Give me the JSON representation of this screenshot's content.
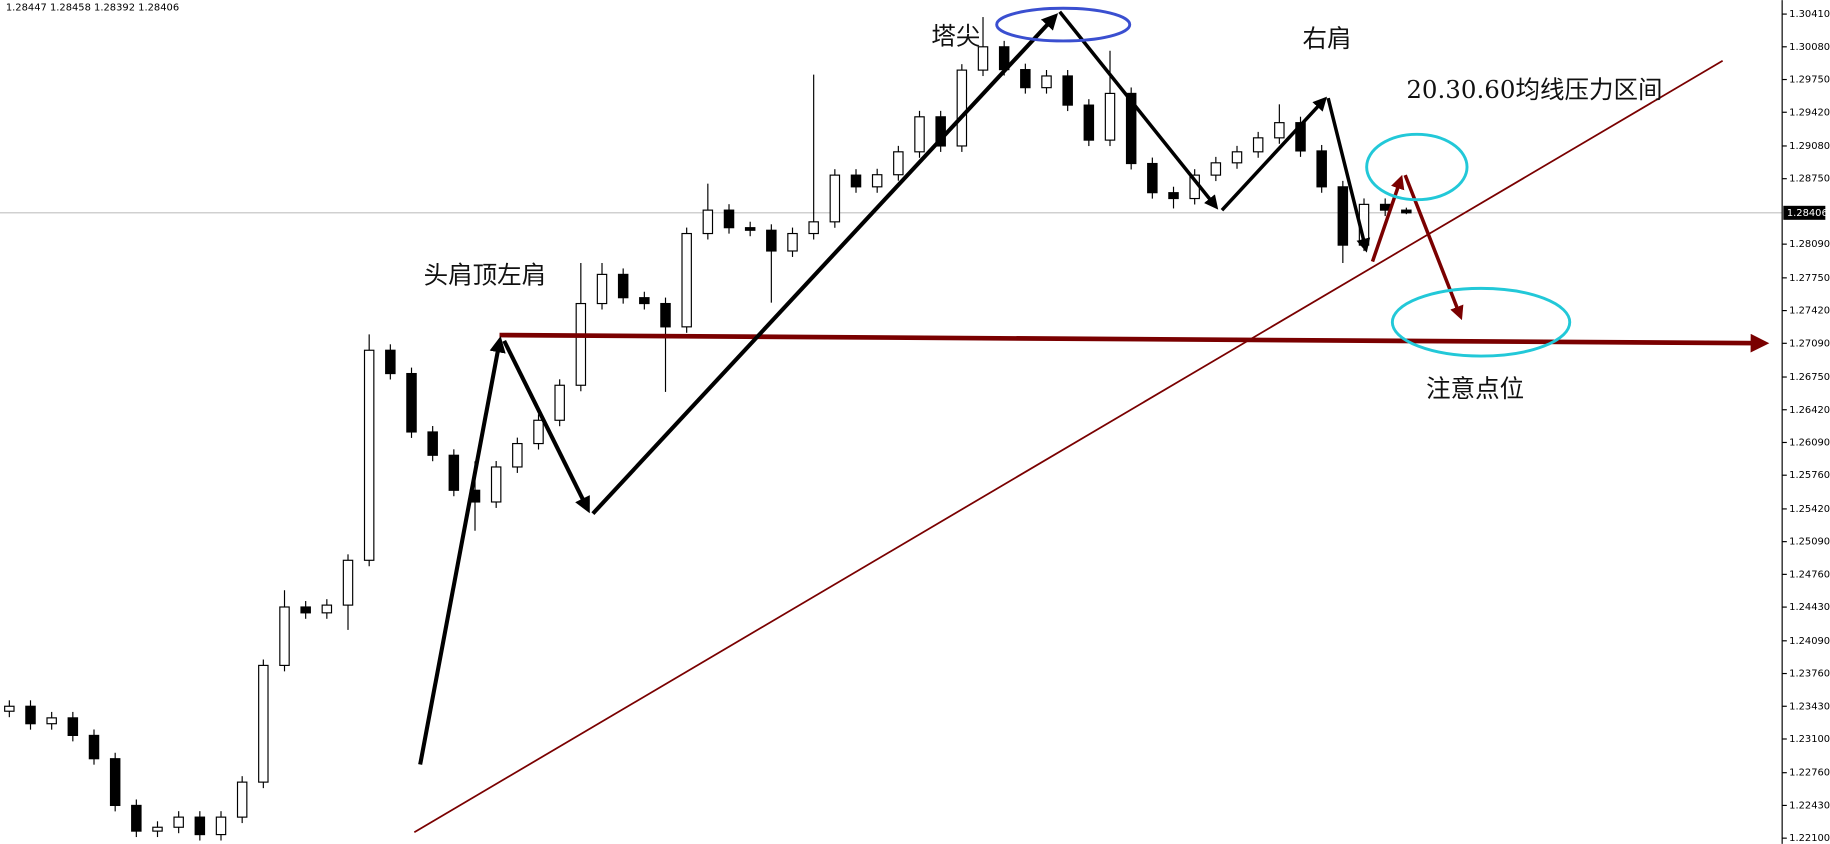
{
  "chart_data": {
    "type": "candlestick",
    "header": "1.28447 1.28458 1.28392 1.28406",
    "open": [
      1.2338,
      1.2343,
      1.23254,
      1.23313,
      1.23136,
      1.22901,
      1.2243,
      1.22171,
      1.2221,
      1.22312,
      1.22136,
      1.22312,
      1.22665,
      1.23842,
      1.24431,
      1.24372,
      1.2445,
      1.24902,
      1.2702,
      1.26785,
      1.26196,
      1.25961,
      1.25608,
      1.2549,
      1.25843,
      1.26079,
      1.26314,
      1.26667,
      1.27491,
      1.27785,
      1.2755,
      1.27491,
      1.27256,
      1.28197,
      1.28433,
      1.28256,
      1.2823,
      1.28021,
      1.28197,
      1.28315,
      1.28786,
      1.28668,
      1.2879,
      1.29021,
      1.29374,
      1.2908,
      1.29845,
      1.3008,
      1.2985,
      1.29668,
      1.29786,
      1.29492,
      1.29139,
      1.2961,
      1.28903,
      1.28609,
      1.2855,
      1.28786,
      1.2891,
      1.29021,
      1.29162,
      1.29315,
      1.2903,
      1.28668,
      1.2808,
      1.28491,
      1.28433
    ],
    "high": [
      1.2349,
      1.2349,
      1.23373,
      1.23373,
      1.23196,
      1.22961,
      1.2249,
      1.2227,
      1.22372,
      1.22372,
      1.22372,
      1.22725,
      1.23902,
      1.246,
      1.24491,
      1.2451,
      1.24962,
      1.2718,
      1.2708,
      1.26845,
      1.26256,
      1.26021,
      1.259,
      1.25903,
      1.26139,
      1.26374,
      1.26727,
      1.279,
      1.279,
      1.27845,
      1.2761,
      1.27551,
      1.28257,
      1.287,
      1.28493,
      1.28316,
      1.2829,
      1.28257,
      1.298,
      1.28846,
      1.28846,
      1.2885,
      1.29081,
      1.29434,
      1.29434,
      1.29905,
      1.3038,
      1.3014,
      1.2991,
      1.29846,
      1.29846,
      1.29552,
      1.3004,
      1.2967,
      1.28963,
      1.28669,
      1.28846,
      1.2897,
      1.29081,
      1.29222,
      1.295,
      1.29375,
      1.2909,
      1.28728,
      1.28551,
      1.28551,
      1.28458
    ],
    "low": [
      1.2332,
      1.23194,
      1.23194,
      1.23076,
      1.22841,
      1.2237,
      1.22111,
      1.22111,
      1.2215,
      1.22076,
      1.22076,
      1.22252,
      1.22605,
      1.23782,
      1.24312,
      1.24312,
      1.242,
      1.24842,
      1.26725,
      1.26136,
      1.25901,
      1.25548,
      1.252,
      1.2543,
      1.25783,
      1.26019,
      1.26254,
      1.26607,
      1.27431,
      1.2749,
      1.27431,
      1.266,
      1.27196,
      1.28137,
      1.28196,
      1.2817,
      1.275,
      1.27961,
      1.28137,
      1.28255,
      1.28608,
      1.28608,
      1.2873,
      1.28961,
      1.2902,
      1.2902,
      1.29785,
      1.2979,
      1.29608,
      1.29608,
      1.29432,
      1.29079,
      1.29079,
      1.28843,
      1.28549,
      1.2845,
      1.2849,
      1.28726,
      1.2885,
      1.28961,
      1.29102,
      1.2897,
      1.28608,
      1.279,
      1.2802,
      1.28373,
      1.28392
    ],
    "close": [
      1.2343,
      1.23254,
      1.23313,
      1.23136,
      1.22901,
      1.2243,
      1.22171,
      1.2221,
      1.22312,
      1.22136,
      1.22312,
      1.22665,
      1.23842,
      1.24431,
      1.24372,
      1.2445,
      1.24902,
      1.2702,
      1.26785,
      1.26196,
      1.25961,
      1.25608,
      1.2549,
      1.25843,
      1.26079,
      1.26314,
      1.26667,
      1.27491,
      1.27785,
      1.2755,
      1.27491,
      1.27256,
      1.28197,
      1.28433,
      1.28256,
      1.2823,
      1.28021,
      1.28197,
      1.28315,
      1.28786,
      1.28668,
      1.2879,
      1.29021,
      1.29374,
      1.2908,
      1.29845,
      1.3008,
      1.2985,
      1.29668,
      1.29786,
      1.29492,
      1.29139,
      1.2961,
      1.28903,
      1.28609,
      1.2855,
      1.28786,
      1.2891,
      1.29021,
      1.29162,
      1.29315,
      1.2903,
      1.28668,
      1.2808,
      1.28491,
      1.28433,
      1.28406
    ],
    "ylim": [
      1.22042,
      1.30551
    ],
    "yticks": [
      {
        "value": 1.3041,
        "label": "1.30410"
      },
      {
        "value": 1.3008,
        "label": "1.30080"
      },
      {
        "value": 1.2975,
        "label": "1.29750"
      },
      {
        "value": 1.2942,
        "label": "1.29420"
      },
      {
        "value": 1.2908,
        "label": "1.29080"
      },
      {
        "value": 1.2875,
        "label": "1.28750"
      },
      {
        "value": 1.2809,
        "label": "1.28090"
      },
      {
        "value": 1.2775,
        "label": "1.27750"
      },
      {
        "value": 1.2742,
        "label": "1.27420"
      },
      {
        "value": 1.2709,
        "label": "1.27090"
      },
      {
        "value": 1.2675,
        "label": "1.26750"
      },
      {
        "value": 1.2642,
        "label": "1.26420"
      },
      {
        "value": 1.2609,
        "label": "1.26090"
      },
      {
        "value": 1.2576,
        "label": "1.25760"
      },
      {
        "value": 1.2542,
        "label": "1.25420"
      },
      {
        "value": 1.2509,
        "label": "1.25090"
      },
      {
        "value": 1.2476,
        "label": "1.24760"
      },
      {
        "value": 1.2443,
        "label": "1.24430"
      },
      {
        "value": 1.2409,
        "label": "1.24090"
      },
      {
        "value": 1.2376,
        "label": "1.23760"
      },
      {
        "value": 1.2343,
        "label": "1.23430"
      },
      {
        "value": 1.231,
        "label": "1.23100"
      },
      {
        "value": 1.2276,
        "label": "1.22760"
      },
      {
        "value": 1.2243,
        "label": "1.22430"
      },
      {
        "value": 1.221,
        "label": "1.22100"
      }
    ],
    "current_price": 1.28406,
    "annotations": [
      "塔尖",
      "右肩",
      "头肩顶左肩",
      "20.30.60均线压力区间",
      "注意点位"
    ]
  }
}
